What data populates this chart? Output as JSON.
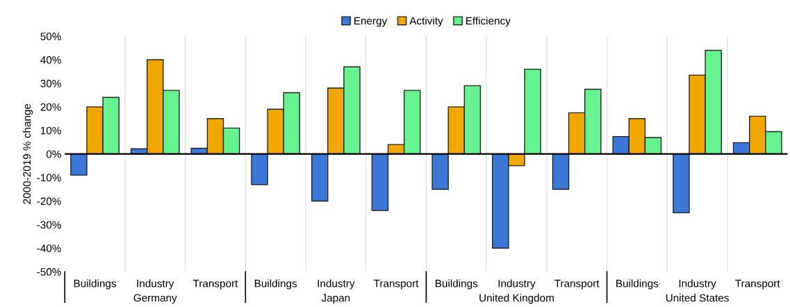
{
  "chart_data": {
    "type": "bar",
    "ylabel": "2000-2019 % change",
    "categories": [
      "Buildings",
      "Industry",
      "Transport",
      "Buildings",
      "Industry",
      "Transport",
      "Buildings",
      "Industry",
      "Transport",
      "Buildings",
      "Industry",
      "Transport"
    ],
    "annotations": [
      "Germany",
      "Japan",
      "United Kingdom",
      "United States"
    ],
    "series": [
      {
        "name": "Energy",
        "color": "#3c78d8",
        "values": [
          -9,
          2.2,
          2.4,
          -13,
          -20,
          -24,
          -15,
          -40,
          -15,
          7.4,
          -25,
          4.8
        ]
      },
      {
        "name": "Activity",
        "color": "#f0a800",
        "values": [
          20,
          40,
          15,
          19,
          28,
          4,
          20,
          -5,
          17.5,
          15,
          33.5,
          16
        ]
      },
      {
        "name": "Efficiency",
        "color": "#66f28f",
        "values": [
          24,
          27,
          11,
          26,
          37,
          27,
          29,
          36,
          27.5,
          7,
          44,
          9.5
        ]
      }
    ],
    "ylim": [
      -50,
      50
    ],
    "yticks": [
      {
        "value": -50,
        "label": "-50%"
      },
      {
        "value": -40,
        "label": "-40%"
      },
      {
        "value": -30,
        "label": "-30%"
      },
      {
        "value": -20,
        "label": "-20%"
      },
      {
        "value": -10,
        "label": "-10%"
      },
      {
        "value": 0,
        "label": "0%"
      },
      {
        "value": 10,
        "label": "10%"
      },
      {
        "value": 20,
        "label": "20%"
      },
      {
        "value": 30,
        "label": "30%"
      },
      {
        "value": 40,
        "label": "40%"
      },
      {
        "value": 50,
        "label": "50%"
      }
    ],
    "grid": "x",
    "legend": "top"
  }
}
